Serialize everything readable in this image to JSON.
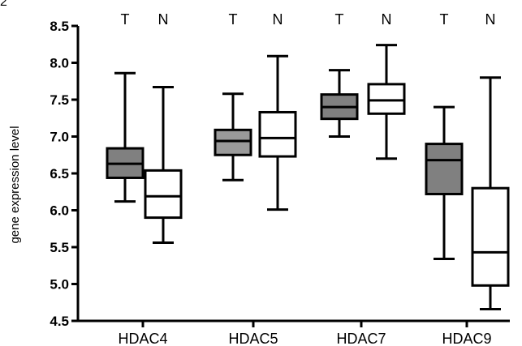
{
  "corner_label": "2",
  "chart_data": {
    "type": "boxplot",
    "title": "",
    "xlabel": "",
    "ylabel": "gene expression level",
    "ylim": [
      4.5,
      8.5
    ],
    "yticks": [
      4.5,
      5.0,
      5.5,
      6.0,
      6.5,
      7.0,
      7.5,
      8.0,
      8.5
    ],
    "yticklabels": [
      "4.5",
      "5.0",
      "5.5",
      "6.0",
      "6.5",
      "7.0",
      "7.5",
      "8.0",
      "8.5"
    ],
    "categories": [
      "HDAC4",
      "HDAC5",
      "HDAC7",
      "HDAC9"
    ],
    "group_labels": [
      "T",
      "N"
    ],
    "colors": {
      "T": "#808080",
      "N": "#ffffff",
      "T_hdac5": "#9a9a9a"
    },
    "grid": false,
    "boxes": [
      {
        "category": "HDAC4",
        "group": "T",
        "min": 6.12,
        "q1": 6.44,
        "median": 6.63,
        "q3": 6.84,
        "max": 7.86
      },
      {
        "category": "HDAC4",
        "group": "N",
        "min": 5.56,
        "q1": 5.9,
        "median": 6.19,
        "q3": 6.54,
        "max": 7.67
      },
      {
        "category": "HDAC5",
        "group": "T",
        "min": 6.41,
        "q1": 6.75,
        "median": 6.94,
        "q3": 7.09,
        "max": 7.58
      },
      {
        "category": "HDAC5",
        "group": "N",
        "min": 6.01,
        "q1": 6.73,
        "median": 6.98,
        "q3": 7.33,
        "max": 8.09
      },
      {
        "category": "HDAC7",
        "group": "T",
        "min": 7.0,
        "q1": 7.24,
        "median": 7.4,
        "q3": 7.57,
        "max": 7.9
      },
      {
        "category": "HDAC7",
        "group": "N",
        "min": 6.7,
        "q1": 7.31,
        "median": 7.49,
        "q3": 7.71,
        "max": 8.24
      },
      {
        "category": "HDAC9",
        "group": "T",
        "min": 5.34,
        "q1": 6.22,
        "median": 6.68,
        "q3": 6.9,
        "max": 7.4
      },
      {
        "category": "HDAC9",
        "group": "N",
        "min": 4.66,
        "q1": 4.98,
        "median": 5.43,
        "q3": 6.3,
        "max": 7.8
      }
    ]
  }
}
